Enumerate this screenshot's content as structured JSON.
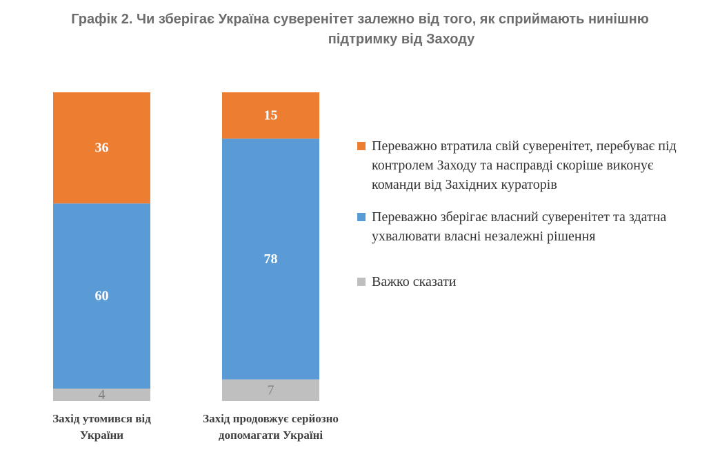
{
  "title_line1": "Графік 2. Чи зберігає Україна суверенітет залежно від того, як сприймають нинішню",
  "title_line2": "підтримку від Заходу",
  "colors": {
    "lost": "#ED7D31",
    "keeps": "#5B9BD5",
    "hard": "#BFBFBF",
    "label_light": "#ffffff",
    "label_dark": "#7f7f7f"
  },
  "legend": [
    {
      "name": "Переважно втратила свій суверенітет, перебуває під контролем Заходу та насправді скоріше виконує команди від Західних кураторів",
      "color": "#ED7D31"
    },
    {
      "name": "Переважно зберігає власний суверенітет та здатна ухвалювати власні незалежні рішення",
      "color": "#5B9BD5"
    },
    {
      "name": "Важко сказати",
      "color": "#BFBFBF"
    }
  ],
  "chart_data": {
    "type": "bar",
    "stacked": true,
    "categories": [
      [
        "Захід утомився від",
        "України"
      ],
      [
        "Захід продовжує серйозно",
        "допомагати Україні"
      ]
    ],
    "series": [
      {
        "name": "Важко сказати",
        "values": [
          4,
          7
        ]
      },
      {
        "name": "Переважно зберігає власний суверенітет та здатна ухвалювати власні незалежні рішення",
        "values": [
          60,
          78
        ]
      },
      {
        "name": "Переважно втратила свій суверенітет, перебуває під контролем Заходу та насправді скоріше виконує команди від Західних кураторів",
        "values": [
          36,
          15
        ]
      }
    ],
    "ylim": [
      0,
      100
    ],
    "legend_position": "right",
    "grid": false,
    "data_labels": true
  }
}
